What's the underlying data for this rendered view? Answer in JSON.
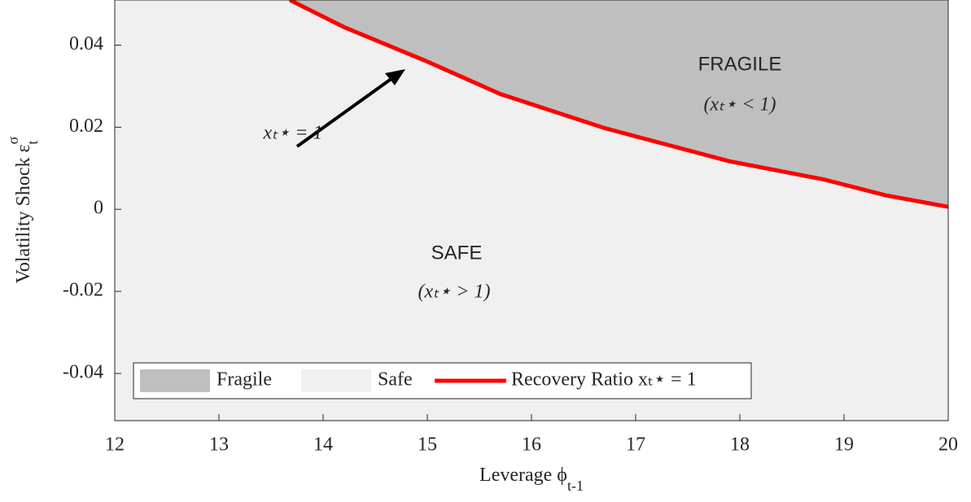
{
  "chart_data": {
    "type": "area",
    "xlabel": "Leverage ϕ",
    "xlabel_sub": "t-1",
    "ylabel": "Volatility Shock ε",
    "ylabel_sup": "σ",
    "ylabel_sub": "t",
    "xlim": [
      12,
      20
    ],
    "xticks": [
      12,
      13,
      14,
      15,
      16,
      17,
      18,
      19,
      20
    ],
    "ylim": [
      -0.0515,
      0.051
    ],
    "yticks": [
      -0.04,
      -0.02,
      0,
      0.02,
      0.04
    ],
    "series": [
      {
        "name": "Fragile",
        "color": "#bfbfbf"
      },
      {
        "name": "Safe",
        "color": "#f0f0f0"
      },
      {
        "name": "Recovery Ratio xₜ⋆ = 1",
        "color": "#ff0000",
        "x": [
          13.68,
          14.2,
          15,
          15.7,
          16.7,
          17.9,
          18.8,
          19.4,
          20
        ],
        "values": [
          0.051,
          0.0444,
          0.036,
          0.0281,
          0.0198,
          0.0117,
          0.0073,
          0.0034,
          0.0006
        ]
      }
    ],
    "annotations": [
      "FRAGILE",
      "(xₜ⋆ < 1)",
      "SAFE",
      "(xₜ⋆ > 1)",
      "xₜ⋆ = 1"
    ]
  }
}
